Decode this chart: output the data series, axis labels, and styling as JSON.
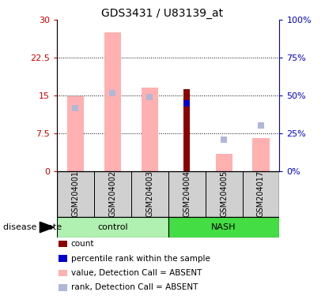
{
  "title": "GDS3431 / U83139_at",
  "samples": [
    "GSM204001",
    "GSM204002",
    "GSM204003",
    "GSM204004",
    "GSM204005",
    "GSM204017"
  ],
  "ylim_left": [
    0,
    30
  ],
  "ylim_right": [
    0,
    100
  ],
  "yticks_left": [
    0,
    7.5,
    15,
    22.5,
    30
  ],
  "yticks_right": [
    0,
    25,
    50,
    75,
    100
  ],
  "ytick_labels_left": [
    "0",
    "7.5",
    "15",
    "22.5",
    "30"
  ],
  "ytick_labels_right": [
    "0%",
    "25%",
    "50%",
    "75%",
    "100%"
  ],
  "value_absent": [
    14.8,
    27.5,
    16.5,
    null,
    3.5,
    6.5
  ],
  "rank_absent_y": [
    12.5,
    15.5,
    14.7,
    null,
    6.2,
    9.0
  ],
  "count": [
    null,
    null,
    null,
    16.2,
    null,
    null
  ],
  "percentile_rank_y": [
    null,
    null,
    null,
    13.5,
    null,
    null
  ],
  "colors": {
    "value_absent": "#ffb0b0",
    "rank_absent": "#b0b8d8",
    "count": "#8b0000",
    "percentile_rank": "#0000cd",
    "left_axis": "#cc0000",
    "right_axis": "#0000cc",
    "control_bg": "#b0f0b0",
    "nash_bg": "#44dd44",
    "sample_bg": "#d0d0d0",
    "title": "#000000"
  },
  "legend_items": [
    {
      "label": "count",
      "color": "#8b0000"
    },
    {
      "label": "percentile rank within the sample",
      "color": "#0000cd"
    },
    {
      "label": "value, Detection Call = ABSENT",
      "color": "#ffb0b0"
    },
    {
      "label": "rank, Detection Call = ABSENT",
      "color": "#b0b8d8"
    }
  ]
}
